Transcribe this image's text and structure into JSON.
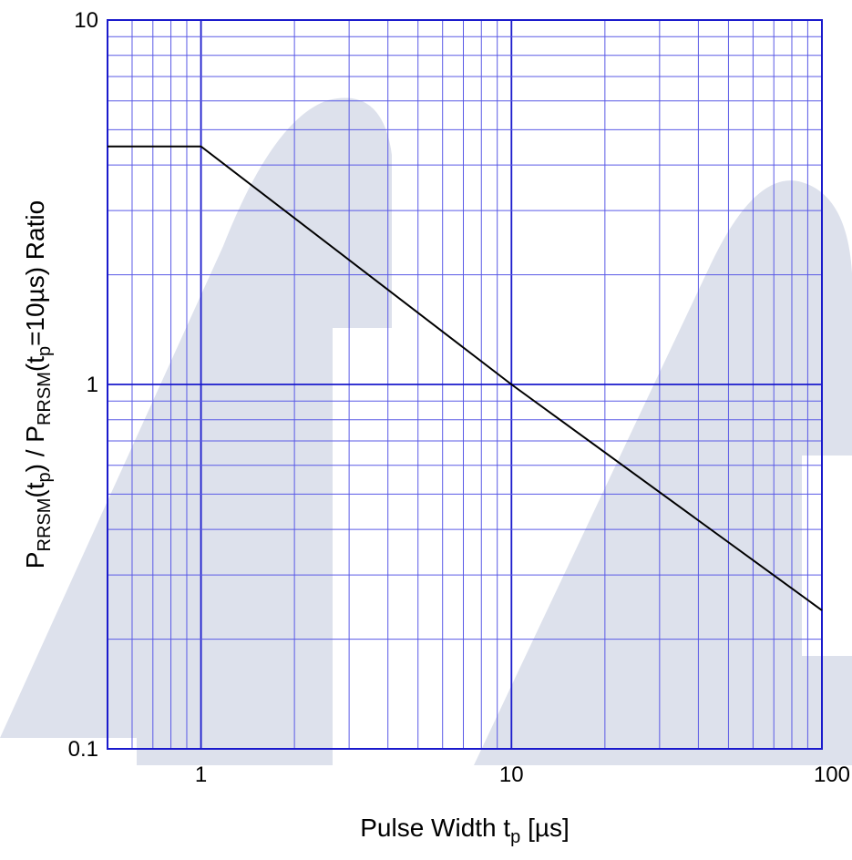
{
  "chart_data": {
    "type": "line",
    "x_scale": "log",
    "y_scale": "log",
    "xlim": [
      0.5,
      100
    ],
    "ylim": [
      0.1,
      10
    ],
    "grid": true,
    "x_tick_labels": [
      {
        "value": 1,
        "label": "1"
      },
      {
        "value": 10,
        "label": "10"
      },
      {
        "value": 100,
        "label": "100"
      }
    ],
    "y_tick_labels": [
      {
        "value": 10,
        "label": "10"
      },
      {
        "value": 1,
        "label": "1"
      },
      {
        "value": 0.1,
        "label": "0.1"
      }
    ],
    "xlabel": {
      "main": "Pulse Width  t",
      "sub": "p",
      "tail": "  [µs]"
    },
    "ylabel": {
      "p1": "P",
      "s1": "RRSM",
      "p2": "(t",
      "s2": "p",
      "p3": ") / P",
      "s3": "RRSM",
      "p4": "(t",
      "s4": "p",
      "p5": "=10µs) Ratio"
    },
    "series": [
      {
        "x": [
          0.5,
          1,
          10,
          100
        ],
        "y": [
          4.5,
          4.5,
          1,
          0.24
        ]
      }
    ],
    "colors": {
      "frame": "#1a1acc",
      "grid": "#5a5ae6",
      "line": "#000000",
      "watermark": "#dde1ec"
    }
  }
}
